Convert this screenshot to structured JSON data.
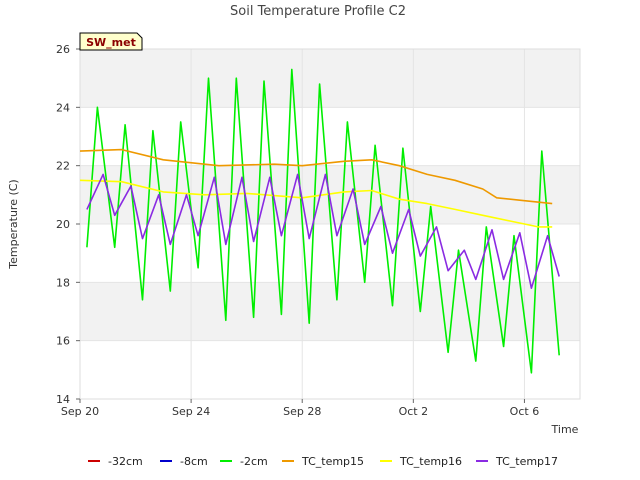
{
  "chart_data": {
    "type": "line",
    "title": "Soil Temperature Profile C2",
    "badge": "SW_met",
    "xlabel": "Time",
    "ylabel": "Temperature (C)",
    "xlim": [
      "2023-09-20",
      "2023-10-08"
    ],
    "ylim": [
      14,
      26
    ],
    "x_ticks": [
      {
        "date": "2023-09-20",
        "label": "Sep 20"
      },
      {
        "date": "2023-09-24",
        "label": "Sep 24"
      },
      {
        "date": "2023-09-28",
        "label": "Sep 28"
      },
      {
        "date": "2023-10-02",
        "label": "Oct 2"
      },
      {
        "date": "2023-10-06",
        "label": "Oct 6"
      }
    ],
    "y_ticks": [
      14,
      16,
      18,
      20,
      22,
      24,
      26
    ],
    "background_bands": "alternating grey every 2 units",
    "legend_position": "bottom",
    "series": [
      {
        "name": "-32cm",
        "color": "#cc0000",
        "x": [],
        "y": []
      },
      {
        "name": "-8cm",
        "color": "#0000cc",
        "x": [],
        "y": []
      },
      {
        "name": "-2cm",
        "color": "#00ee00",
        "x": [
          "2023-09-20T06:00",
          "2023-09-20T15:00",
          "2023-09-21T06:00",
          "2023-09-21T15:00",
          "2023-09-22T06:00",
          "2023-09-22T15:00",
          "2023-09-23T06:00",
          "2023-09-23T15:00",
          "2023-09-24T06:00",
          "2023-09-24T15:00",
          "2023-09-25T06:00",
          "2023-09-25T15:00",
          "2023-09-26T06:00",
          "2023-09-26T15:00",
          "2023-09-27T06:00",
          "2023-09-27T15:00",
          "2023-09-28T06:00",
          "2023-09-28T15:00",
          "2023-09-29T06:00",
          "2023-09-29T15:00",
          "2023-09-30T06:00",
          "2023-09-30T15:00",
          "2023-10-01T06:00",
          "2023-10-01T15:00",
          "2023-10-02T06:00",
          "2023-10-02T15:00",
          "2023-10-03T06:00",
          "2023-10-03T15:00",
          "2023-10-04T06:00",
          "2023-10-04T15:00",
          "2023-10-05T06:00",
          "2023-10-05T15:00",
          "2023-10-06T06:00",
          "2023-10-06T15:00",
          "2023-10-07T06:00"
        ],
        "y": [
          19.2,
          24.0,
          19.2,
          23.4,
          17.4,
          23.2,
          17.7,
          23.5,
          18.5,
          25.0,
          16.7,
          25.0,
          16.8,
          24.9,
          16.9,
          25.3,
          16.6,
          24.8,
          17.4,
          23.5,
          18.0,
          22.7,
          17.2,
          22.6,
          17.0,
          20.6,
          15.6,
          19.1,
          15.3,
          19.9,
          15.8,
          19.6,
          14.9,
          22.5,
          15.5
        ]
      },
      {
        "name": "TC_temp15",
        "color": "#ee9900",
        "x": [
          "2023-09-20T00:00",
          "2023-09-21T12:00",
          "2023-09-23T00:00",
          "2023-09-25T00:00",
          "2023-09-27T00:00",
          "2023-09-28T00:00",
          "2023-09-29T12:00",
          "2023-09-30T12:00",
          "2023-10-01T12:00",
          "2023-10-02T12:00",
          "2023-10-03T12:00",
          "2023-10-04T12:00",
          "2023-10-05T00:00",
          "2023-10-06T00:00",
          "2023-10-07T00:00"
        ],
        "y": [
          22.5,
          22.55,
          22.2,
          22.0,
          22.05,
          22.0,
          22.15,
          22.2,
          22.0,
          21.7,
          21.5,
          21.2,
          20.9,
          20.8,
          20.7
        ]
      },
      {
        "name": "TC_temp16",
        "color": "#ffff00",
        "x": [
          "2023-09-20T00:00",
          "2023-09-21T12:00",
          "2023-09-23T00:00",
          "2023-09-24T12:00",
          "2023-09-26T00:00",
          "2023-09-28T00:00",
          "2023-09-29T12:00",
          "2023-09-30T12:00",
          "2023-10-01T12:00",
          "2023-10-02T12:00",
          "2023-10-03T12:00",
          "2023-10-04T12:00",
          "2023-10-05T12:00",
          "2023-10-06T12:00",
          "2023-10-07T00:00"
        ],
        "y": [
          21.5,
          21.45,
          21.1,
          21.0,
          21.05,
          20.9,
          21.1,
          21.15,
          20.85,
          20.7,
          20.5,
          20.3,
          20.1,
          19.9,
          19.9
        ]
      },
      {
        "name": "TC_temp17",
        "color": "#8a2be2",
        "x": [
          "2023-09-20T06:00",
          "2023-09-20T20:00",
          "2023-09-21T06:00",
          "2023-09-21T20:00",
          "2023-09-22T06:00",
          "2023-09-22T20:00",
          "2023-09-23T06:00",
          "2023-09-23T20:00",
          "2023-09-24T06:00",
          "2023-09-24T20:00",
          "2023-09-25T06:00",
          "2023-09-25T20:00",
          "2023-09-26T06:00",
          "2023-09-26T20:00",
          "2023-09-27T06:00",
          "2023-09-27T20:00",
          "2023-09-28T06:00",
          "2023-09-28T20:00",
          "2023-09-29T06:00",
          "2023-09-29T20:00",
          "2023-09-30T06:00",
          "2023-09-30T20:00",
          "2023-10-01T06:00",
          "2023-10-01T20:00",
          "2023-10-02T06:00",
          "2023-10-02T20:00",
          "2023-10-03T06:00",
          "2023-10-03T20:00",
          "2023-10-04T06:00",
          "2023-10-04T20:00",
          "2023-10-05T06:00",
          "2023-10-05T20:00",
          "2023-10-06T06:00",
          "2023-10-06T20:00",
          "2023-10-07T06:00"
        ],
        "y": [
          20.5,
          21.7,
          20.3,
          21.3,
          19.5,
          21.0,
          19.3,
          21.0,
          19.6,
          21.6,
          19.3,
          21.6,
          19.4,
          21.6,
          19.6,
          21.7,
          19.5,
          21.7,
          19.6,
          21.2,
          19.3,
          20.6,
          19.0,
          20.5,
          18.9,
          19.9,
          18.4,
          19.1,
          18.1,
          19.8,
          18.1,
          19.7,
          17.8,
          19.6,
          18.2
        ]
      }
    ]
  }
}
